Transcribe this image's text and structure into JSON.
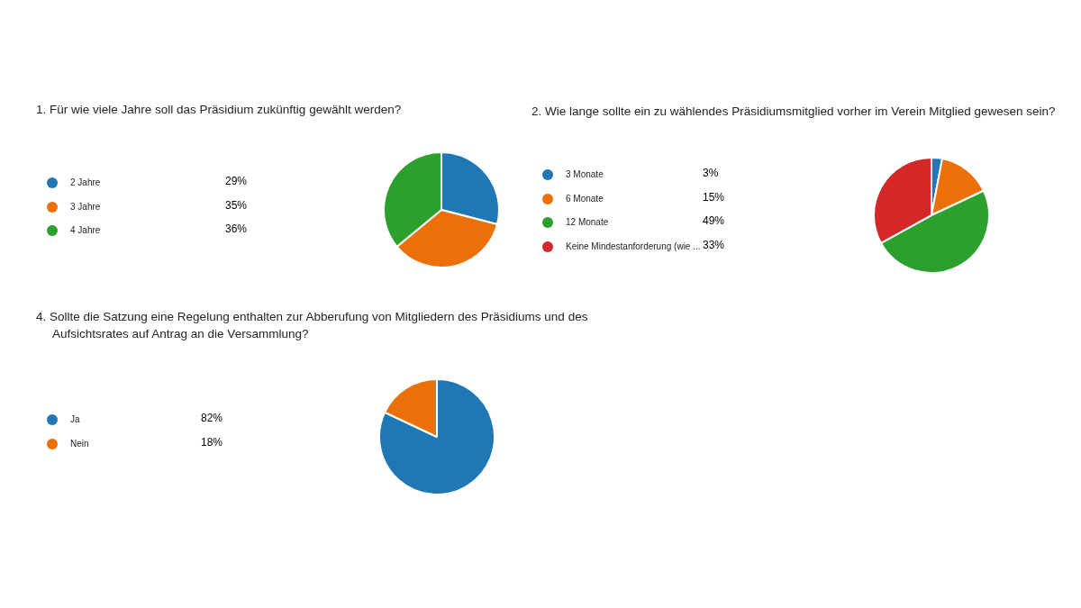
{
  "chart_data": [
    {
      "type": "pie",
      "title": "1.  Für wie viele Jahre soll das Präsidium zukünftig gewählt werden?",
      "categories": [
        "2 Jahre",
        "3 Jahre",
        "4 Jahre"
      ],
      "values": [
        29,
        35,
        36
      ],
      "value_labels": [
        "29%",
        "35%",
        "36%"
      ],
      "colors": [
        "#1f77b4",
        "#eb700a",
        "#2ca02c"
      ],
      "legend": "left"
    },
    {
      "type": "pie",
      "title": "2.  Wie lange sollte ein zu wählendes Präsidiumsmitglied vorher im Verein Mitglied gewesen sein?",
      "categories": [
        "3 Monate",
        "6 Monate",
        "12 Monate",
        "Keine Mindestanforderung (wie ..."
      ],
      "values": [
        3,
        15,
        49,
        33
      ],
      "value_labels": [
        "3%",
        "15%",
        "49%",
        "33%"
      ],
      "colors": [
        "#1f77b4",
        "#eb700a",
        "#2ca02c",
        "#d62728"
      ],
      "legend": "left"
    },
    {
      "type": "pie",
      "title": "4.  Sollte die Satzung eine Regelung enthalten zur Abberufung von Mitgliedern des Präsidiums und des Aufsichtsrates auf Antrag an die Versammlung?",
      "categories": [
        "Ja",
        "Nein"
      ],
      "values": [
        82,
        18
      ],
      "value_labels": [
        "82%",
        "18%"
      ],
      "colors": [
        "#1f77b4",
        "#eb700a"
      ],
      "legend": "left"
    }
  ]
}
